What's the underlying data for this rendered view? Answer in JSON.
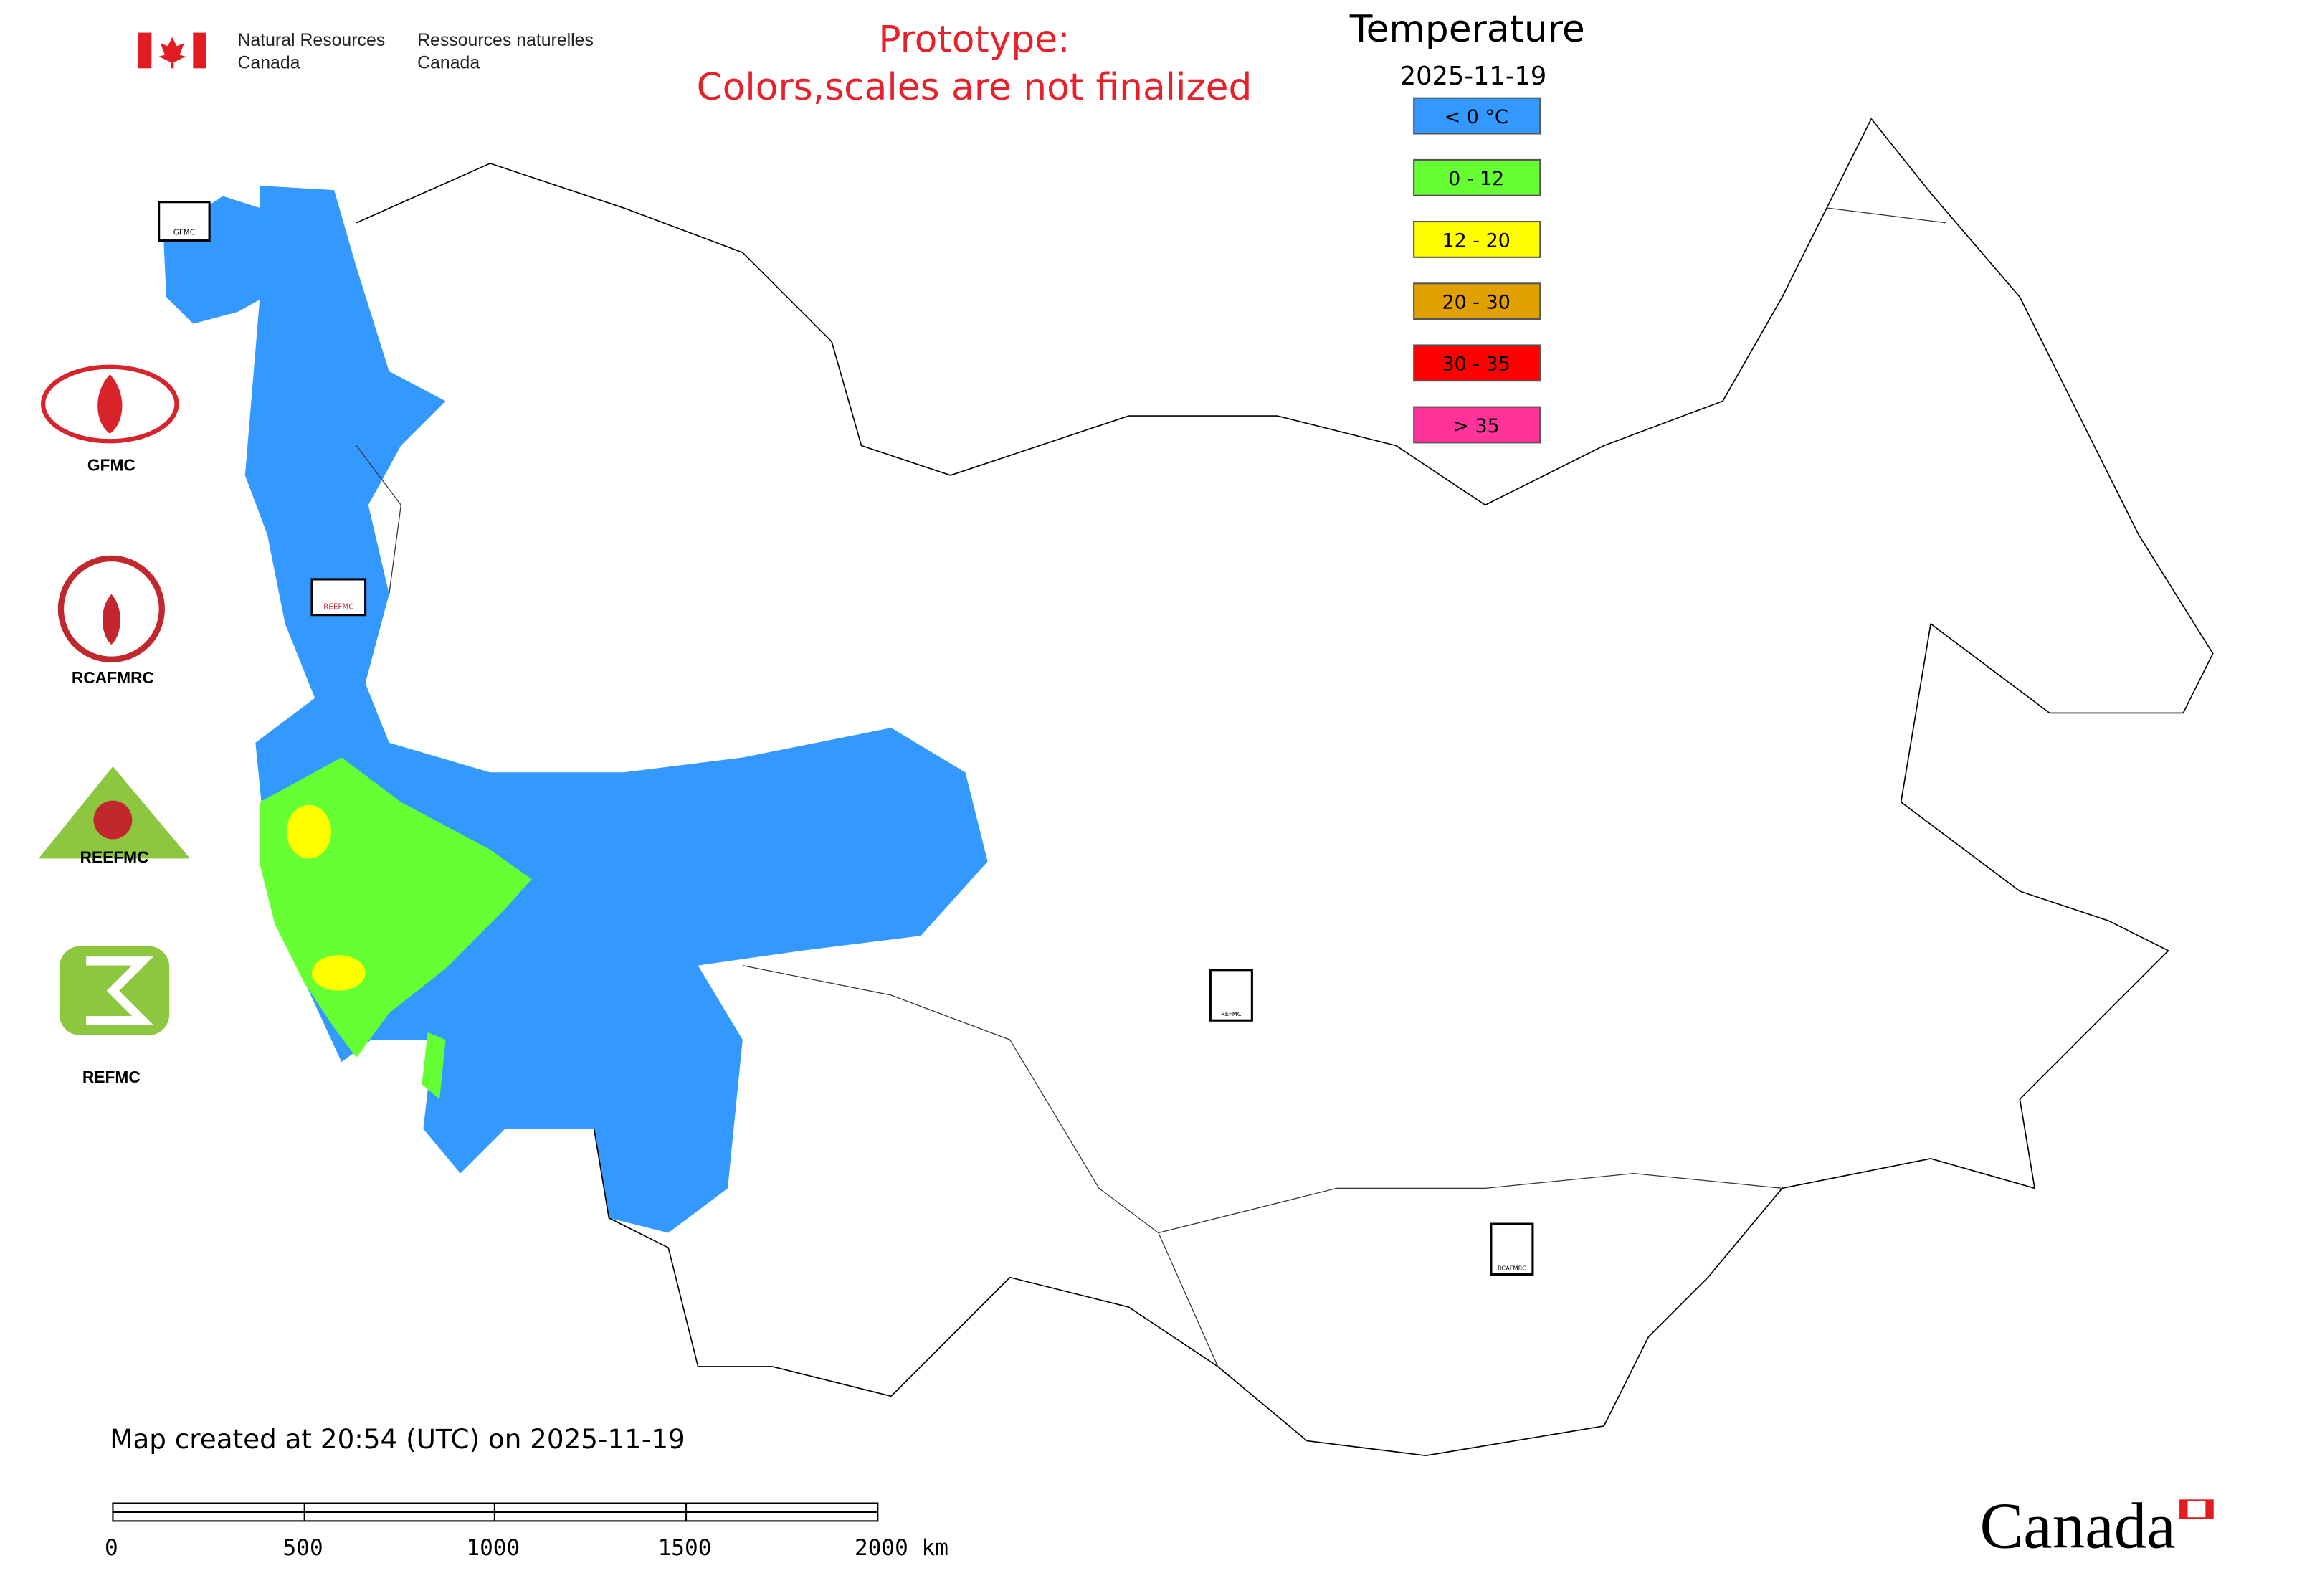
{
  "header": {
    "department_en": [
      "Natural Resources",
      "Canada"
    ],
    "department_fr": [
      "Ressources naturelles",
      "Canada"
    ],
    "notice": [
      "Prototype:",
      "Colors,scales are not finalized"
    ]
  },
  "legend": {
    "title": "Temperature",
    "date": "2025-11-19",
    "items": [
      {
        "label": "< 0 °C",
        "color": "#3399ff"
      },
      {
        "label": "0 - 12",
        "color": "#66ff33"
      },
      {
        "label": "12 - 20",
        "color": "#ffff00"
      },
      {
        "label": "20 - 30",
        "color": "#e0a000"
      },
      {
        "label": "30 - 35",
        "color": "#ff0000"
      },
      {
        "label": "> 35",
        "color": "#ff3399"
      }
    ]
  },
  "logos": [
    "GFMC",
    "RCAFMRC",
    "REEFMC",
    "REFMC"
  ],
  "markers": [
    "GFMC",
    "REEFMC",
    "REFMC",
    "RCAFMRC"
  ],
  "footer": {
    "created": "Map created at 20:54 (UTC) on 2025-11-19",
    "scale_labels": [
      "0",
      "500",
      "1000",
      "1500",
      "2000 km"
    ],
    "wordmark": "Canada"
  }
}
